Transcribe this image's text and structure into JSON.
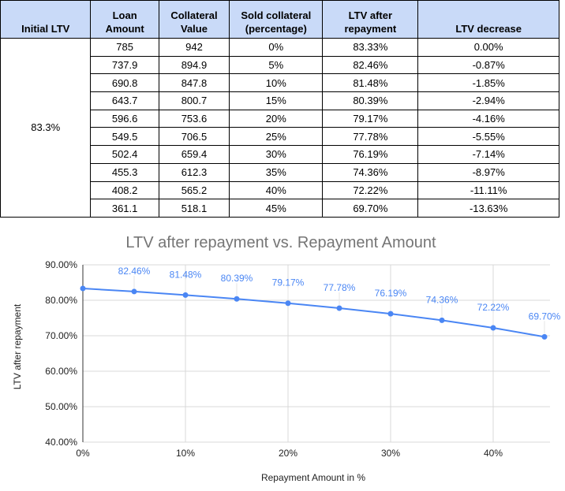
{
  "table": {
    "headers": [
      "Initial LTV",
      "Loan Amount",
      "Collateral Value",
      "Sold collateral (percentage)",
      "LTV after repayment",
      "LTV decrease"
    ],
    "header_lines": [
      [
        "Initial LTV"
      ],
      [
        "Loan",
        "Amount"
      ],
      [
        "Collateral",
        "Value"
      ],
      [
        "Sold collateral",
        "(percentage)"
      ],
      [
        "LTV after",
        "repayment"
      ],
      [
        "LTV decrease"
      ]
    ],
    "initial_ltv": "83.3%",
    "rows": [
      [
        "785",
        "942",
        "0%",
        "83.33%",
        "0.00%"
      ],
      [
        "737.9",
        "894.9",
        "5%",
        "82.46%",
        "-0.87%"
      ],
      [
        "690.8",
        "847.8",
        "10%",
        "81.48%",
        "-1.85%"
      ],
      [
        "643.7",
        "800.7",
        "15%",
        "80.39%",
        "-2.94%"
      ],
      [
        "596.6",
        "753.6",
        "20%",
        "79.17%",
        "-4.16%"
      ],
      [
        "549.5",
        "706.5",
        "25%",
        "77.78%",
        "-5.55%"
      ],
      [
        "502.4",
        "659.4",
        "30%",
        "76.19%",
        "-7.14%"
      ],
      [
        "455.3",
        "612.3",
        "35%",
        "74.36%",
        "-8.97%"
      ],
      [
        "408.2",
        "565.2",
        "40%",
        "72.22%",
        "-11.11%"
      ],
      [
        "361.1",
        "518.1",
        "45%",
        "69.70%",
        "-13.63%"
      ]
    ],
    "header_color": "#c9daf8"
  },
  "chart_data": {
    "type": "line",
    "title": "LTV after repayment vs. Repayment Amount",
    "xlabel": "Repayment Amount in %",
    "ylabel": "LTV after repayment",
    "x": [
      0,
      5,
      10,
      15,
      20,
      25,
      30,
      35,
      40,
      45
    ],
    "series": [
      {
        "name": "LTV after repayment",
        "values": [
          83.33,
          82.46,
          81.48,
          80.39,
          79.17,
          77.78,
          76.19,
          74.36,
          72.22,
          69.7
        ],
        "color": "#4a86f4"
      }
    ],
    "data_labels": [
      "",
      "82.46%",
      "81.48%",
      "80.39%",
      "79.17%",
      "77.78%",
      "76.19%",
      "74.36%",
      "72.22%",
      "69.70%"
    ],
    "xlim": [
      0,
      45
    ],
    "ylim": [
      40,
      90
    ],
    "xticks": [
      0,
      10,
      20,
      30,
      40
    ],
    "xtick_labels": [
      "0%",
      "10%",
      "20%",
      "30%",
      "40%"
    ],
    "yticks": [
      40,
      50,
      60,
      70,
      80,
      90
    ],
    "ytick_labels": [
      "40.00%",
      "50.00%",
      "60.00%",
      "70.00%",
      "80.00%",
      "90.00%"
    ],
    "grid": true,
    "legend": "none"
  }
}
